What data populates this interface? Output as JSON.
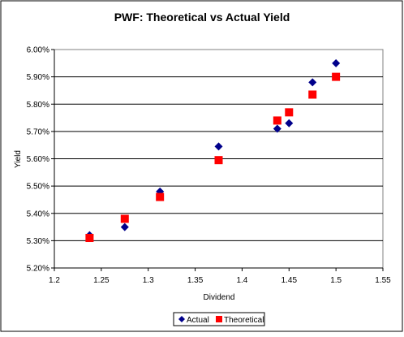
{
  "chart_data": {
    "type": "scatter",
    "title": "PWF: Theoretical vs Actual Yield",
    "xlabel": "Dividend",
    "ylabel": "Yield",
    "xlim": [
      1.2,
      1.55
    ],
    "ylim": [
      5.2,
      6.0
    ],
    "x_ticks": [
      "1.2",
      "1.25",
      "1.3",
      "1.35",
      "1.4",
      "1.45",
      "1.5",
      "1.55"
    ],
    "y_ticks": [
      "5.20%",
      "5.30%",
      "5.40%",
      "5.50%",
      "5.60%",
      "5.70%",
      "5.80%",
      "5.90%",
      "6.00%"
    ],
    "grid": "horizontal",
    "legend_position": "bottom",
    "series": [
      {
        "name": "Actual",
        "marker": "diamond",
        "color": "#00008B",
        "x": [
          1.2375,
          1.275,
          1.3125,
          1.375,
          1.4375,
          1.45,
          1.475,
          1.5
        ],
        "y": [
          5.32,
          5.35,
          5.48,
          5.645,
          5.71,
          5.73,
          5.88,
          5.95
        ]
      },
      {
        "name": "Theoretical",
        "marker": "square",
        "color": "#FF0000",
        "x": [
          1.2375,
          1.275,
          1.3125,
          1.375,
          1.4375,
          1.45,
          1.475,
          1.5
        ],
        "y": [
          5.31,
          5.38,
          5.46,
          5.595,
          5.74,
          5.77,
          5.835,
          5.9
        ]
      }
    ]
  }
}
